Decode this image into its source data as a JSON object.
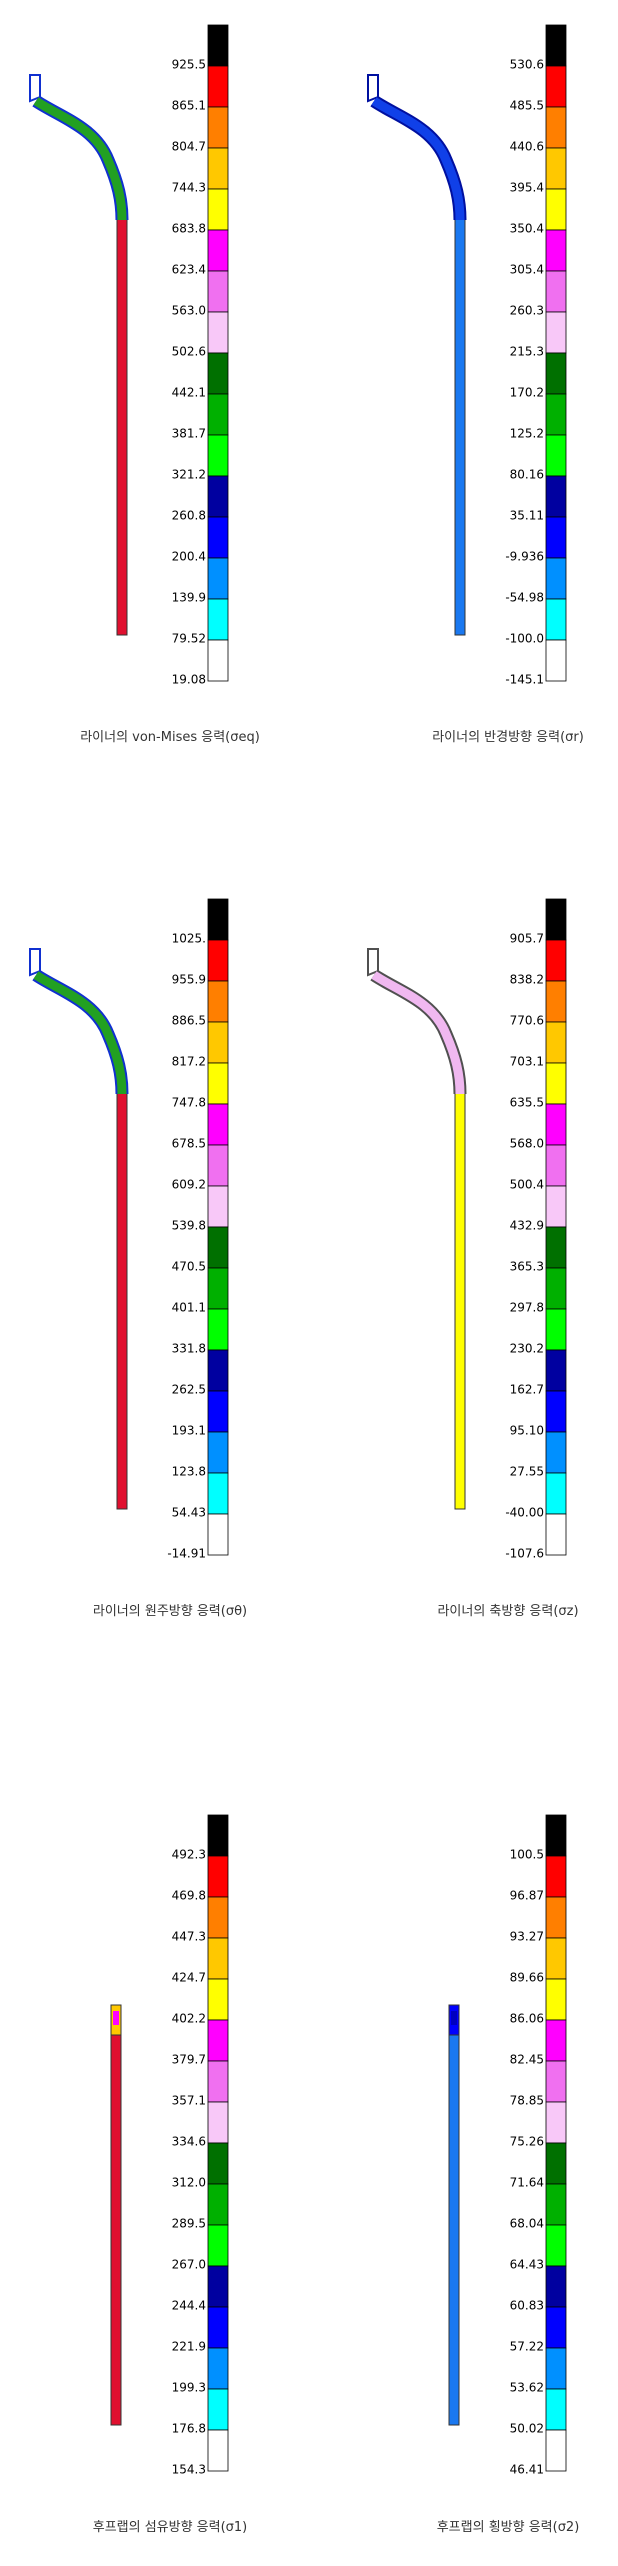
{
  "panels": [
    {
      "caption": "라이너의 von-Mises 응력(σeq)",
      "levels": [
        "925.5",
        "865.1",
        "804.7",
        "744.3",
        "683.8",
        "623.4",
        "563.0",
        "502.6",
        "442.1",
        "381.7",
        "321.2",
        "260.8",
        "200.4",
        "139.9",
        "79.52",
        "19.08"
      ]
    },
    {
      "caption": "라이너의 반경방향 응력(σr)",
      "levels": [
        "530.6",
        "485.5",
        "440.6",
        "395.4",
        "350.4",
        "305.4",
        "260.3",
        "215.3",
        "170.2",
        "125.2",
        "80.16",
        "35.11",
        "-9.936",
        "-54.98",
        "-100.0",
        "-145.1"
      ]
    },
    {
      "caption": "라이너의 원주방향 응력(σθ)",
      "levels": [
        "1025.",
        "955.9",
        "886.5",
        "817.2",
        "747.8",
        "678.5",
        "609.2",
        "539.8",
        "470.5",
        "401.1",
        "331.8",
        "262.5",
        "193.1",
        "123.8",
        "54.43",
        "-14.91"
      ]
    },
    {
      "caption": "라이너의 축방향 응력(σz)",
      "levels": [
        "905.7",
        "838.2",
        "770.6",
        "703.1",
        "635.5",
        "568.0",
        "500.4",
        "432.9",
        "365.3",
        "297.8",
        "230.2",
        "162.7",
        "95.10",
        "27.55",
        "-40.00",
        "-107.6"
      ]
    },
    {
      "caption": "후프랩의 섬유방향 응력(σ1)",
      "levels": [
        "492.3",
        "469.8",
        "447.3",
        "424.7",
        "402.2",
        "379.7",
        "357.1",
        "334.6",
        "312.0",
        "289.5",
        "267.0",
        "244.4",
        "221.9",
        "199.3",
        "176.8",
        "154.3"
      ]
    },
    {
      "caption": "후프랩의 횡방향 응력(σ2)",
      "levels": [
        "100.5",
        "96.87",
        "93.27",
        "89.66",
        "86.06",
        "82.45",
        "78.85",
        "75.26",
        "71.64",
        "68.04",
        "64.43",
        "60.83",
        "57.22",
        "53.62",
        "50.02",
        "46.41"
      ]
    }
  ]
}
